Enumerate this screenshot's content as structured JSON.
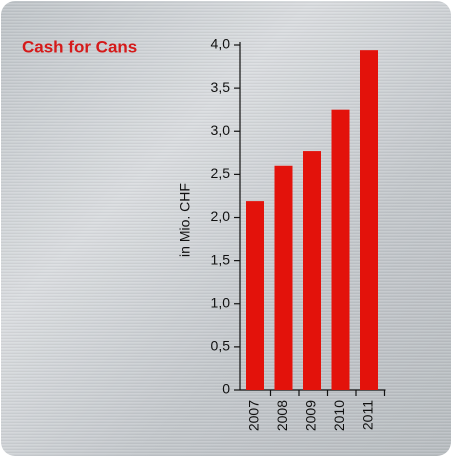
{
  "chart_data": {
    "type": "bar",
    "title": "Cash for Cans",
    "y_label": "in Mio. CHF",
    "categories": [
      "2007",
      "2008",
      "2009",
      "2010",
      "2011"
    ],
    "values": [
      2.19,
      2.6,
      2.77,
      3.25,
      3.94
    ],
    "color": "#e3120b",
    "ylim": [
      0,
      4
    ],
    "yticks": [
      0,
      {
        "value": 0.5,
        "label": "0,5"
      },
      {
        "value": 1,
        "label": "1,0"
      },
      {
        "value": 1.5,
        "label": "1,5"
      },
      {
        "value": 2,
        "label": "2,0"
      },
      {
        "value": 2.5,
        "label": "2,5"
      },
      {
        "value": 3,
        "label": "3,0"
      },
      {
        "value": 3.5,
        "label": "3,5"
      },
      {
        "value": 4,
        "label": "4,0"
      }
    ]
  }
}
